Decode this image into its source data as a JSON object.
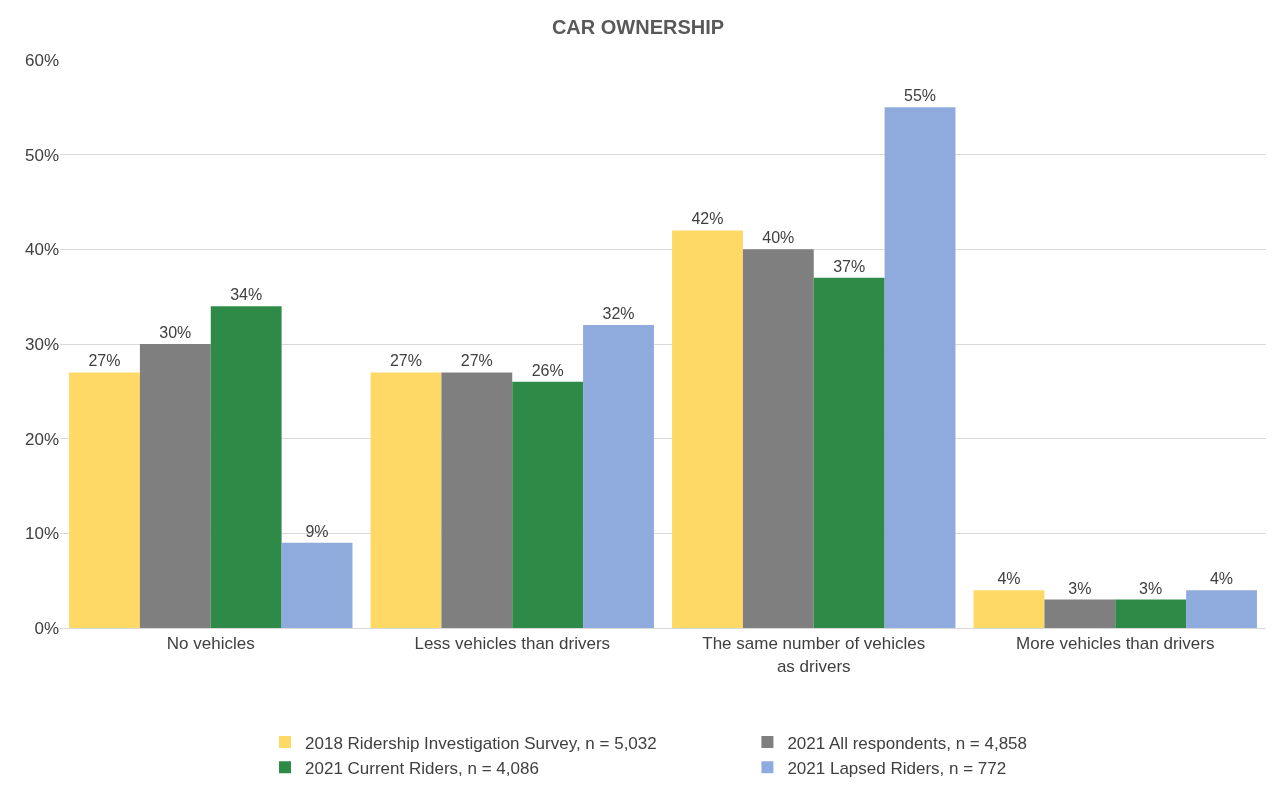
{
  "chart_data": {
    "type": "bar",
    "title": "CAR OWNERSHIP",
    "categories": [
      "No vehicles",
      "Less vehicles than drivers",
      "The same number of vehicles as drivers",
      "More vehicles than drivers"
    ],
    "series": [
      {
        "name": "2018 Ridership Investigation Survey, n = 5,032",
        "color": "#ffd966",
        "values": [
          27,
          27,
          42,
          4
        ],
        "value_labels": [
          "27%",
          "27%",
          "42%",
          "4%"
        ]
      },
      {
        "name": "2021 All respondents, n = 4,858",
        "color": "#7f7f7f",
        "values": [
          30,
          27,
          40,
          3
        ],
        "value_labels": [
          "30%",
          "27%",
          "40%",
          "3%"
        ]
      },
      {
        "name": "2021 Current Riders, n = 4,086",
        "color": "#2e8b47",
        "values": [
          34,
          26,
          37,
          3
        ],
        "value_labels": [
          "34%",
          "26%",
          "37%",
          "3%"
        ]
      },
      {
        "name": "2021 Lapsed Riders, n = 772",
        "color": "#8faadc",
        "values": [
          9,
          32,
          55,
          4
        ],
        "value_labels": [
          "9%",
          "32%",
          "55%",
          "4%"
        ]
      }
    ],
    "ylim": [
      0,
      60
    ],
    "yticks": [
      {
        "value": 0,
        "label": "0%"
      },
      {
        "value": 10,
        "label": "10%"
      },
      {
        "value": 20,
        "label": "20%"
      },
      {
        "value": 30,
        "label": "30%"
      },
      {
        "value": 40,
        "label": "40%"
      },
      {
        "value": 50,
        "label": "50%"
      },
      {
        "value": 60,
        "label": "60%"
      }
    ],
    "grid": "y",
    "legend": "bottom"
  }
}
